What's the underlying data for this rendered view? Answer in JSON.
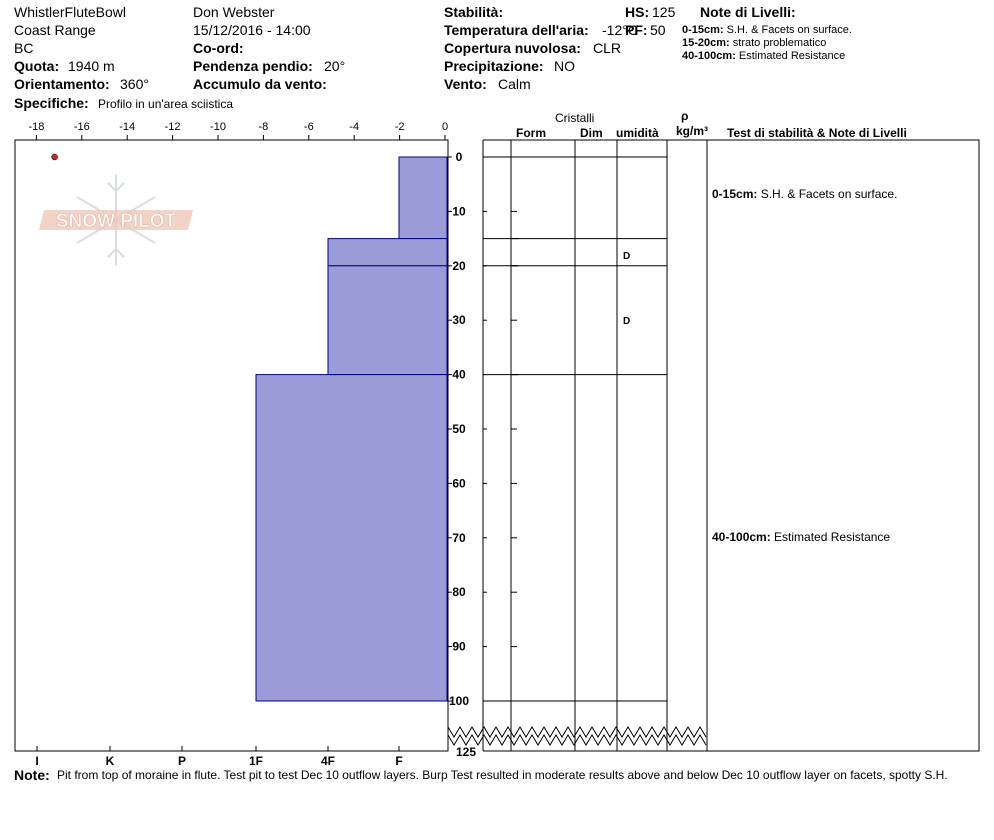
{
  "header": {
    "location": "WhistlerFluteBowl",
    "range": "Coast Range",
    "region": "BC",
    "observer": "Don Webster",
    "datetime": "15/12/2016 - 14:00",
    "quota_label": "Quota:",
    "quota_value": "1940 m",
    "orient_label": "Orientamento:",
    "orient_value": "360°",
    "coord_label": "Co-ord:",
    "slope_label": "Pendenza pendio:",
    "slope_value": "20°",
    "wind_label": "Accumulo da vento:",
    "spec_label": "Specifiche:",
    "spec_value": "Profilo in un'area sciistica",
    "stab_label": "Stabilità:",
    "airtemp_label": "Temperatura dell'aria:",
    "airtemp_value": "-12°C",
    "cloud_label": "Copertura nuvolosa:",
    "cloud_value": "CLR",
    "precip_label": "Precipitazione:",
    "precip_value": "NO",
    "vento_label": "Vento:",
    "vento_value": "Calm",
    "hs_label": "HS:",
    "hs_value": "125",
    "pf_label": "PF:",
    "pf_value": "50",
    "notes_title": "Note di Livelli:",
    "notes": [
      {
        "range": "0-15cm:",
        "text": "S.H. & Facets on surface."
      },
      {
        "range": "15-20cm:",
        "text": "strato problematico"
      },
      {
        "range": "40-100cm:",
        "text": "Estimated Resistance"
      }
    ]
  },
  "logo_text": "SNOW PILOT",
  "columns": {
    "cristalli": "Cristalli",
    "form": "Form",
    "dim": "Dim",
    "umidita": "umidità",
    "rho": "ρ",
    "density_unit": "kg/m³",
    "test_notes": "Test di stabilità & Note di Livelli"
  },
  "layer_notes": [
    {
      "range": "0-15cm:",
      "text": "S.H. & Facets on surface.",
      "depth": 7
    },
    {
      "range": "40-100cm:",
      "text": "Estimated Resistance",
      "depth": 70
    }
  ],
  "moisture": [
    {
      "depth": 18,
      "label": "D"
    },
    {
      "depth": 30,
      "label": "D"
    }
  ],
  "footer": {
    "note_label": "Note:",
    "note_text": "Pit from top of moraine in flute.  Test pit to test Dec 10 outflow layers.  Burp Test resulted in moderate results above and below Dec 10 outflow layer on facets, spotty S.H."
  },
  "colors": {
    "hardness_fill": "#9b9bd7",
    "hardness_stroke": "#00008b",
    "temp_point": "#cc2222",
    "logo": "#f0c8b8"
  },
  "chart_data": {
    "type": "bar",
    "title": "",
    "temperature_axis": {
      "ticks": [
        -18,
        -16,
        -14,
        -12,
        -10,
        -8,
        -6,
        -4,
        -2,
        0
      ],
      "range": [
        -19,
        0
      ]
    },
    "depth_axis": {
      "ticks": [
        0,
        10,
        20,
        30,
        40,
        50,
        60,
        70,
        80,
        90,
        100
      ],
      "bottom_label": "125",
      "unit": "cm"
    },
    "hardness_axis": {
      "labels": [
        "I",
        "K",
        "P",
        "1F",
        "4F",
        "F"
      ]
    },
    "layers": [
      {
        "top": 0,
        "bottom": 15,
        "hardness": "F"
      },
      {
        "top": 15,
        "bottom": 20,
        "hardness": "4F"
      },
      {
        "top": 20,
        "bottom": 40,
        "hardness": "4F"
      },
      {
        "top": 40,
        "bottom": 100,
        "hardness": "1F"
      }
    ],
    "layer_boundaries": [
      0,
      15,
      20,
      40,
      100
    ],
    "temperature_points": [
      {
        "depth": 0,
        "temp": -17.2
      }
    ]
  }
}
